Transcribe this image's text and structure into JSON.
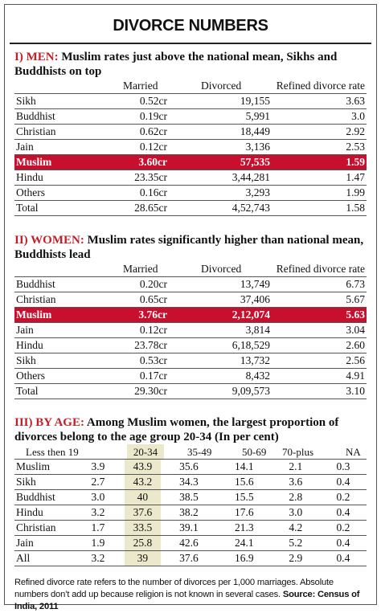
{
  "title": "DIVORCE NUMBERS",
  "men": {
    "heading_num": "I) ",
    "heading_label": "MEN:",
    "heading_desc": " Muslim rates just above the national mean, Sikhs and Buddhists on top",
    "columns": [
      "Married",
      "Divorced",
      "Refined divorce rate"
    ],
    "rows": [
      {
        "name": "Sikh",
        "married": "0.52cr",
        "divorced": "19,155",
        "rate": "3.63",
        "highlight": false
      },
      {
        "name": "Buddhist",
        "married": "0.19cr",
        "divorced": "5,991",
        "rate": "3.0",
        "highlight": false
      },
      {
        "name": "Christian",
        "married": "0.62cr",
        "divorced": "18,449",
        "rate": "2.92",
        "highlight": false
      },
      {
        "name": "Jain",
        "married": "0.12cr",
        "divorced": "3,136",
        "rate": "2.53",
        "highlight": false
      },
      {
        "name": "Muslim",
        "married": "3.60cr",
        "divorced": "57,535",
        "rate": "1.59",
        "highlight": true
      },
      {
        "name": "Hindu",
        "married": "23.35cr",
        "divorced": "3,44,281",
        "rate": "1.47",
        "highlight": false
      },
      {
        "name": "Others",
        "married": "0.16cr",
        "divorced": "3,293",
        "rate": "1.99",
        "highlight": false
      },
      {
        "name": "Total",
        "married": "28.65cr",
        "divorced": "4,52,743",
        "rate": "1.58",
        "highlight": false
      }
    ]
  },
  "women": {
    "heading_num": "II) ",
    "heading_label": "WOMEN:",
    "heading_desc": " Muslim rates significantly higher than national mean, Buddhists lead",
    "columns": [
      "Married",
      "Divorced",
      "Refined divorce rate"
    ],
    "rows": [
      {
        "name": "Buddhist",
        "married": "0.20cr",
        "divorced": "13,749",
        "rate": "6.73",
        "highlight": false
      },
      {
        "name": "Christian",
        "married": "0.65cr",
        "divorced": "37,406",
        "rate": "5.67",
        "highlight": false
      },
      {
        "name": "Muslim",
        "married": "3.76cr",
        "divorced": "2,12,074",
        "rate": "5.63",
        "highlight": true
      },
      {
        "name": "Jain",
        "married": "0.12cr",
        "divorced": "3,814",
        "rate": "3.04",
        "highlight": false
      },
      {
        "name": "Hindu",
        "married": "23.78cr",
        "divorced": "6,18,529",
        "rate": "2.60",
        "highlight": false
      },
      {
        "name": "Sikh",
        "married": "0.53cr",
        "divorced": "13,732",
        "rate": "2.56",
        "highlight": false
      },
      {
        "name": "Others",
        "married": "0.17cr",
        "divorced": "8,432",
        "rate": "4.91",
        "highlight": false
      },
      {
        "name": "Total",
        "married": "29.30cr",
        "divorced": "9,09,573",
        "rate": "3.10",
        "highlight": false
      }
    ]
  },
  "age": {
    "heading_num": "III) ",
    "heading_label": "BY AGE:",
    "heading_desc": " Among Muslim women, the largest proportion of divorces belong to the age group 20-34 (In per cent)",
    "columns": [
      "Less then 19",
      "20-34",
      "35-49",
      "50-69",
      "70-plus",
      "NA"
    ],
    "highlight_column": 1,
    "rows": [
      {
        "name": "Muslim",
        "values": [
          "3.9",
          "43.9",
          "35.6",
          "14.1",
          "2.1",
          "0.3"
        ]
      },
      {
        "name": "Sikh",
        "values": [
          "2.7",
          "43.2",
          "34.3",
          "15.6",
          "3.6",
          "0.4"
        ]
      },
      {
        "name": "Buddhist",
        "values": [
          "3.0",
          "40",
          "38.5",
          "15.5",
          "2.8",
          "0.2"
        ]
      },
      {
        "name": "Hindu",
        "values": [
          "3.2",
          "37.6",
          "38.2",
          "17.6",
          "3.0",
          "0.4"
        ]
      },
      {
        "name": "Christian",
        "values": [
          "1.7",
          "33.5",
          "39.1",
          "21.3",
          "4.2",
          "0.2"
        ]
      },
      {
        "name": "Jain",
        "values": [
          "1.9",
          "25.8",
          "42.6",
          "24.1",
          "5.2",
          "0.4"
        ]
      },
      {
        "name": "All",
        "values": [
          "3.2",
          "39",
          "37.6",
          "16.9",
          "2.9",
          "0.4"
        ]
      }
    ]
  },
  "footnote": {
    "text": "Refined divorce rate refers to the number of divorces per 1,000 marriages. Absolute numbers don’t add up because religion is not known in several cases. ",
    "source": "Source: Census of India, 2011"
  },
  "colors": {
    "accent": "#c41e26",
    "highlight_row": "#c8102e",
    "highlight_col": "#ece8cc"
  }
}
